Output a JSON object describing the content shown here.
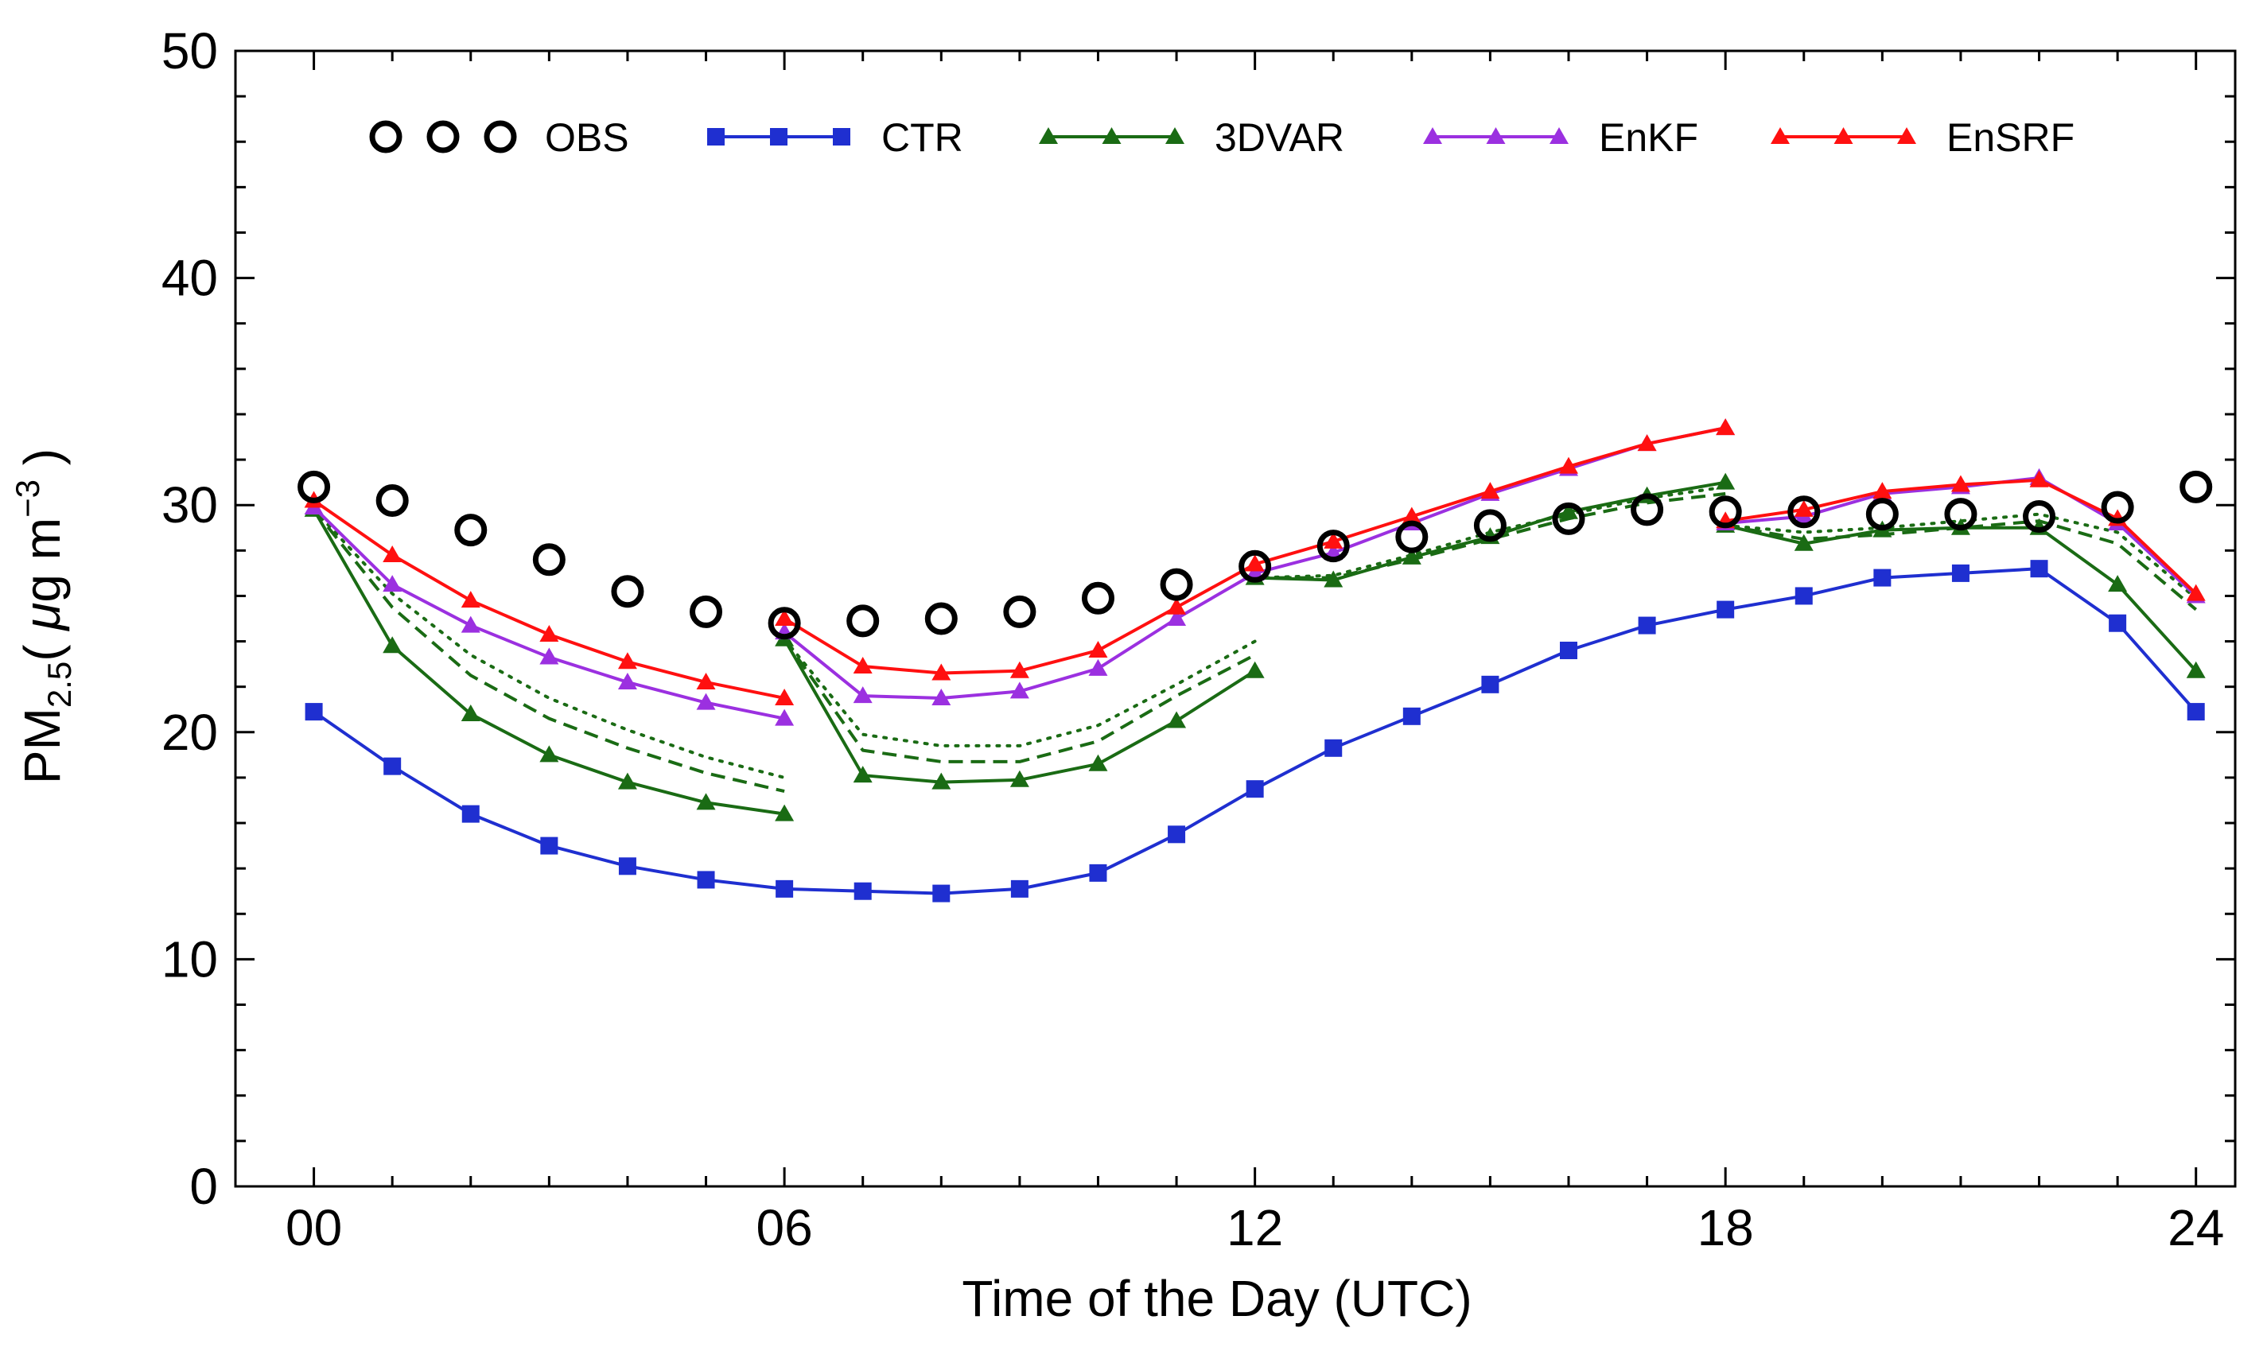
{
  "chart_data": {
    "type": "line",
    "title": "",
    "xlabel": "Time of the Day (UTC)",
    "ylabel_main": "PM",
    "ylabel_sub": "2.5",
    "ylabel_units_open": "( ",
    "ylabel_mu": "μ",
    "ylabel_units": "g m",
    "ylabel_exp": "−3",
    "ylabel_units_close": " )",
    "xlim": [
      -1,
      24.5
    ],
    "ylim": [
      0,
      50
    ],
    "xticks": [
      0,
      6,
      12,
      18,
      24
    ],
    "xtick_labels": [
      "00",
      "06",
      "12",
      "18",
      "24"
    ],
    "xminor": [
      1,
      2,
      3,
      4,
      5,
      7,
      8,
      9,
      10,
      11,
      13,
      14,
      15,
      16,
      17,
      19,
      20,
      21,
      22,
      23
    ],
    "yticks": [
      0,
      10,
      20,
      30,
      40,
      50
    ],
    "ytick_labels": [
      "0",
      "10",
      "20",
      "30",
      "40",
      "50"
    ],
    "yminor": [
      2,
      4,
      6,
      8,
      12,
      14,
      16,
      18,
      22,
      24,
      26,
      28,
      32,
      34,
      36,
      38,
      42,
      44,
      46,
      48
    ],
    "legend": [
      {
        "label": "OBS",
        "color": "#000000",
        "marker": "circle"
      },
      {
        "label": "CTR",
        "color": "#1f2fd0",
        "marker": "square"
      },
      {
        "label": "3DVAR",
        "color": "#1a6b14",
        "marker": "triangle"
      },
      {
        "label": "EnKF",
        "color": "#9b30e0",
        "marker": "triangle"
      },
      {
        "label": "EnSRF",
        "color": "#ff1010",
        "marker": "triangle"
      }
    ],
    "series": [
      {
        "name": "OBS",
        "color": "#000000",
        "marker": "circle",
        "line": "none",
        "segments": [
          {
            "x": [
              0,
              1,
              2,
              3,
              4,
              5,
              6,
              7,
              8,
              9,
              10,
              11,
              12,
              13,
              14,
              15,
              16,
              17,
              18,
              19,
              20,
              21,
              22,
              23,
              24
            ],
            "y": [
              30.8,
              30.2,
              28.9,
              27.6,
              26.2,
              25.3,
              24.8,
              24.9,
              25.0,
              25.3,
              25.9,
              26.5,
              27.3,
              28.2,
              28.6,
              29.1,
              29.4,
              29.8,
              29.7,
              29.7,
              29.6,
              29.6,
              29.5,
              29.9,
              30.8
            ]
          }
        ]
      },
      {
        "name": "CTR",
        "color": "#1f2fd0",
        "marker": "square",
        "line": "solid",
        "segments": [
          {
            "x": [
              0,
              1,
              2,
              3,
              4,
              5,
              6,
              7,
              8,
              9,
              10,
              11,
              12,
              13,
              14,
              15,
              16,
              17,
              18,
              19,
              20,
              21,
              22,
              23,
              24
            ],
            "y": [
              20.9,
              18.5,
              16.4,
              15.0,
              14.1,
              13.5,
              13.1,
              13.0,
              12.9,
              13.1,
              13.8,
              15.5,
              17.5,
              19.3,
              20.7,
              22.1,
              23.6,
              24.7,
              25.4,
              26.0,
              26.8,
              27.0,
              27.2,
              24.8,
              20.9
            ]
          }
        ]
      },
      {
        "name": "3DVAR",
        "color": "#1a6b14",
        "marker": "triangle",
        "line": "solid",
        "segments": [
          {
            "x": [
              0,
              1,
              2,
              3,
              4,
              5,
              6
            ],
            "y": [
              29.8,
              23.8,
              20.8,
              19.0,
              17.8,
              16.9,
              16.4
            ]
          },
          {
            "x": [
              6,
              7,
              8,
              9,
              10,
              11,
              12
            ],
            "y": [
              24.1,
              18.1,
              17.8,
              17.9,
              18.6,
              20.5,
              22.7
            ]
          },
          {
            "x": [
              12,
              13,
              14,
              15,
              16,
              17,
              18
            ],
            "y": [
              26.8,
              26.7,
              27.7,
              28.6,
              29.7,
              30.4,
              31.0
            ]
          },
          {
            "x": [
              18,
              19,
              20,
              21,
              22,
              23,
              24
            ],
            "y": [
              29.1,
              28.3,
              28.9,
              29.0,
              29.0,
              26.5,
              22.7
            ]
          }
        ]
      },
      {
        "name": "EnKF",
        "color": "#9b30e0",
        "marker": "triangle",
        "line": "solid",
        "segments": [
          {
            "x": [
              0,
              1,
              2,
              3,
              4,
              5,
              6
            ],
            "y": [
              29.9,
              26.5,
              24.7,
              23.3,
              22.2,
              21.3,
              20.6
            ]
          },
          {
            "x": [
              6,
              7,
              8,
              9,
              10,
              11,
              12
            ],
            "y": [
              24.4,
              21.6,
              21.5,
              21.8,
              22.8,
              25.0,
              27.0
            ]
          },
          {
            "x": [
              12,
              13,
              14,
              15,
              16,
              17,
              18
            ],
            "y": [
              27.0,
              27.9,
              29.2,
              30.5,
              31.6,
              32.7,
              33.4
            ]
          },
          {
            "x": [
              18,
              19,
              20,
              21,
              22,
              23,
              24
            ],
            "y": [
              29.2,
              29.5,
              30.5,
              30.8,
              31.2,
              29.2,
              26.0
            ]
          }
        ]
      },
      {
        "name": "EnSRF",
        "color": "#ff1010",
        "marker": "triangle",
        "line": "solid",
        "segments": [
          {
            "x": [
              0,
              1,
              2,
              3,
              4,
              5,
              6
            ],
            "y": [
              30.2,
              27.8,
              25.8,
              24.3,
              23.1,
              22.2,
              21.5
            ]
          },
          {
            "x": [
              6,
              7,
              8,
              9,
              10,
              11,
              12
            ],
            "y": [
              25.0,
              22.9,
              22.6,
              22.7,
              23.6,
              25.5,
              27.4
            ]
          },
          {
            "x": [
              12,
              13,
              14,
              15,
              16,
              17,
              18
            ],
            "y": [
              27.4,
              28.4,
              29.5,
              30.6,
              31.7,
              32.7,
              33.4
            ]
          },
          {
            "x": [
              18,
              19,
              20,
              21,
              22,
              23,
              24
            ],
            "y": [
              29.3,
              29.8,
              30.6,
              30.9,
              31.1,
              29.4,
              26.1
            ]
          }
        ]
      },
      {
        "name": "3DVAR (dashed)",
        "color": "#1a6b14",
        "marker": "none",
        "line": "dashed",
        "segments": [
          {
            "x": [
              0,
              1,
              2,
              3,
              4,
              5,
              6
            ],
            "y": [
              29.8,
              25.5,
              22.5,
              20.6,
              19.3,
              18.2,
              17.4
            ]
          },
          {
            "x": [
              6,
              7,
              8,
              9,
              10,
              11,
              12
            ],
            "y": [
              24.1,
              19.2,
              18.7,
              18.7,
              19.6,
              21.6,
              23.4
            ]
          },
          {
            "x": [
              12,
              13,
              14,
              15,
              16,
              17,
              18
            ],
            "y": [
              26.8,
              26.8,
              27.6,
              28.5,
              29.4,
              30.1,
              30.5
            ]
          },
          {
            "x": [
              18,
              19,
              20,
              21,
              22,
              23,
              24
            ],
            "y": [
              29.1,
              28.5,
              28.7,
              29.0,
              29.3,
              28.3,
              25.4
            ]
          }
        ]
      },
      {
        "name": "3DVAR (dotted)",
        "color": "#1a6b14",
        "marker": "none",
        "line": "dotted",
        "segments": [
          {
            "x": [
              0,
              1,
              2,
              3,
              4,
              5,
              6
            ],
            "y": [
              29.8,
              26.1,
              23.4,
              21.5,
              20.1,
              18.9,
              18.0
            ]
          },
          {
            "x": [
              6,
              7,
              8,
              9,
              10,
              11,
              12
            ],
            "y": [
              24.1,
              19.9,
              19.4,
              19.4,
              20.3,
              22.1,
              24.0
            ]
          },
          {
            "x": [
              12,
              13,
              14,
              15,
              16,
              17,
              18
            ],
            "y": [
              26.8,
              26.9,
              27.8,
              28.8,
              29.6,
              30.3,
              30.8
            ]
          },
          {
            "x": [
              18,
              19,
              20,
              21,
              22,
              23,
              24
            ],
            "y": [
              29.1,
              28.8,
              29.0,
              29.3,
              29.6,
              28.8,
              25.9
            ]
          }
        ]
      }
    ]
  }
}
